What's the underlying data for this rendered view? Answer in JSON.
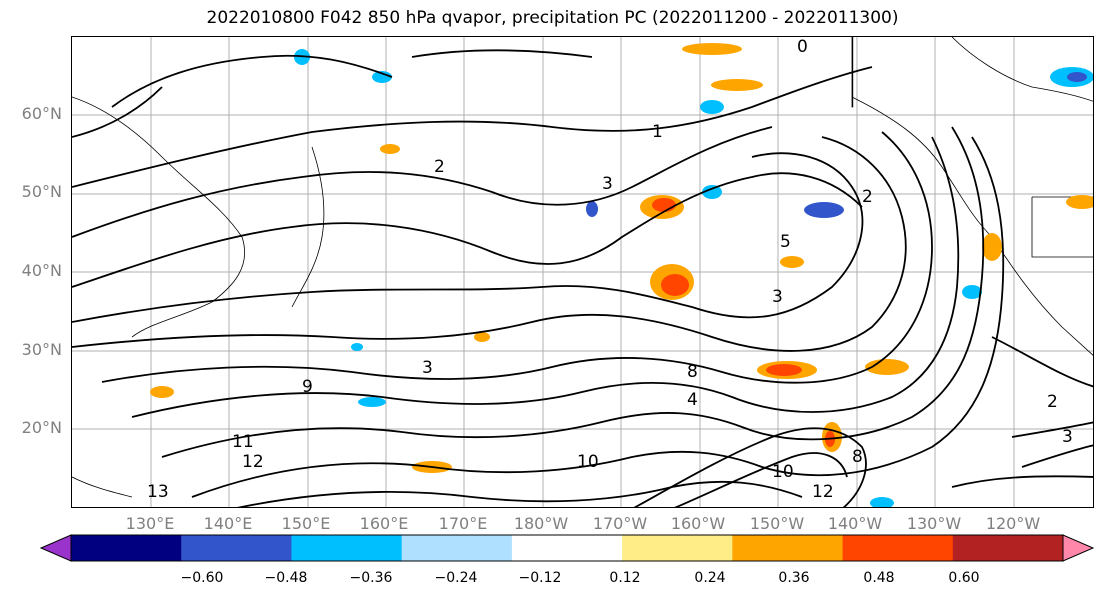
{
  "title": "2022010800 F042 850 hPa qvapor, precipitation PC (2022011200 - 2022011300)",
  "map": {
    "lat_labels": [
      "60°N",
      "50°N",
      "40°N",
      "30°N",
      "20°N"
    ],
    "lon_labels": [
      "130°E",
      "140°E",
      "150°E",
      "160°E",
      "170°E",
      "180°W",
      "170°W",
      "160°W",
      "150°W",
      "140°W",
      "130°W",
      "120°W"
    ],
    "contour_labels": [
      "0",
      "1",
      "2",
      "3",
      "5",
      "3",
      "2",
      "8",
      "9",
      "3",
      "4",
      "10",
      "11",
      "12",
      "13",
      "10",
      "8",
      "12",
      "2",
      "3"
    ],
    "grid": true
  },
  "colorbar": {
    "colors": [
      "#9933cc",
      "#000080",
      "#3355cc",
      "#00bfff",
      "#b0e0ff",
      "#ffffff",
      "#ffee88",
      "#ffa500",
      "#ff4500",
      "#b22222",
      "#ff88aa"
    ],
    "ticks": [
      "−0.60",
      "−0.48",
      "−0.36",
      "−0.24",
      "−0.12",
      "0.12",
      "0.24",
      "0.36",
      "0.48",
      "0.60"
    ],
    "extend": "both"
  }
}
